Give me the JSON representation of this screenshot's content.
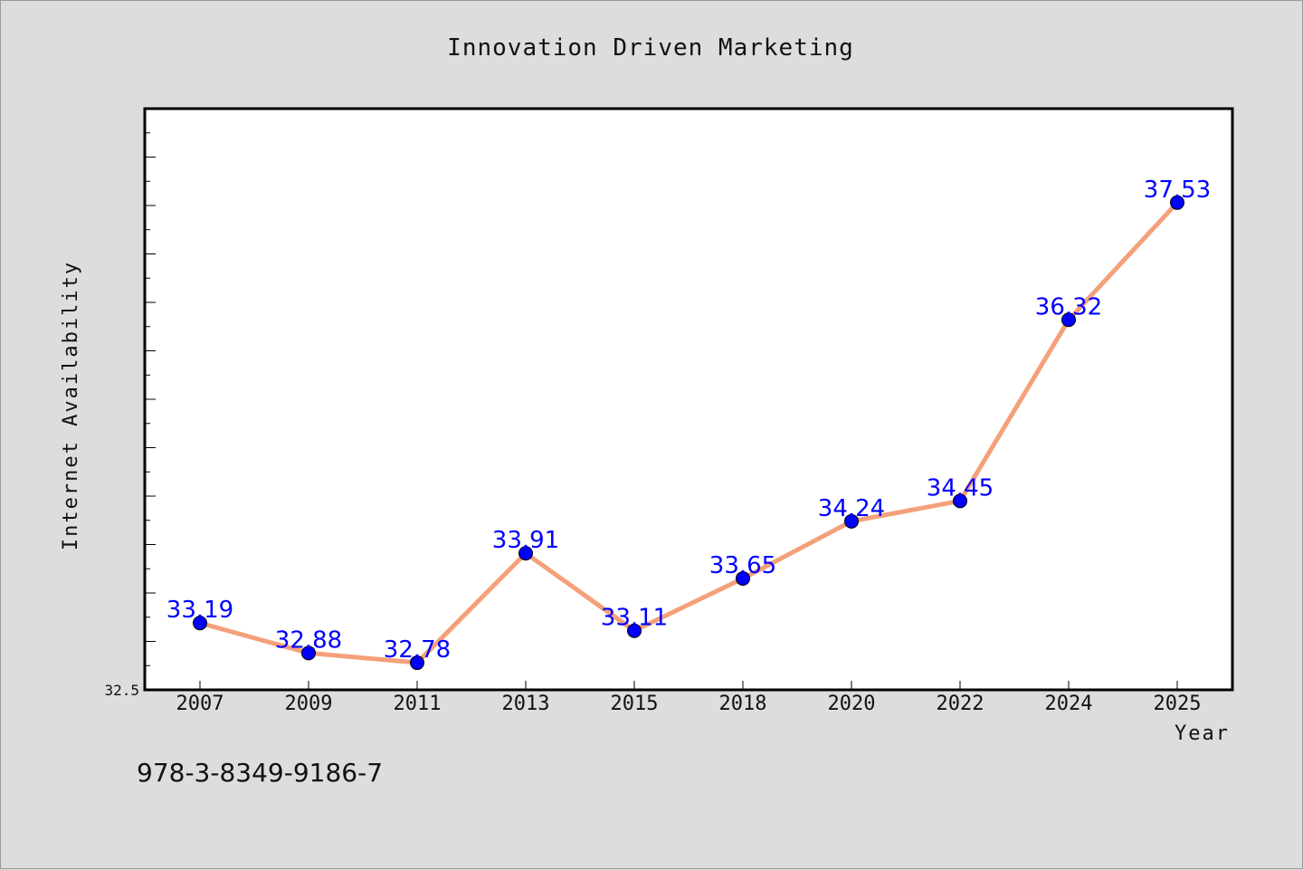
{
  "chart_data": {
    "type": "line",
    "title": "Innovation Driven Marketing",
    "xlabel": "Year",
    "ylabel": "Internet Availability",
    "categories": [
      "2007",
      "2009",
      "2011",
      "2013",
      "2015",
      "2018",
      "2020",
      "2022",
      "2024",
      "2025"
    ],
    "series": [
      {
        "values": [
          33.19,
          32.88,
          32.78,
          33.91,
          33.11,
          33.65,
          34.24,
          34.45,
          36.32,
          37.53
        ],
        "labels": [
          "33.19",
          "32.88",
          "32.78",
          "33.91",
          "33.11",
          "33.65",
          "34.24",
          "34.45",
          "36.32",
          "37.53"
        ],
        "line_color": "#f4a07a",
        "marker_color": "#0000ff"
      }
    ],
    "ylim": [
      32.5,
      38.5
    ],
    "y_tick_labels": [
      "32.5"
    ],
    "grid": false,
    "legend": "none"
  },
  "footer": {
    "text": "978-3-8349-9186-7"
  }
}
